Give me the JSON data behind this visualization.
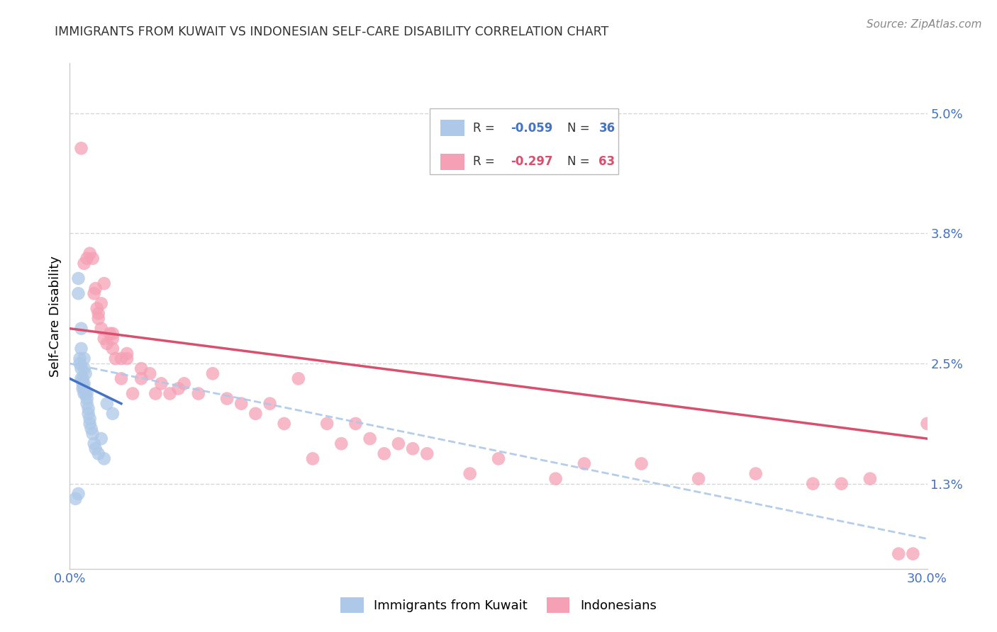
{
  "title": "IMMIGRANTS FROM KUWAIT VS INDONESIAN SELF-CARE DISABILITY CORRELATION CHART",
  "source": "Source: ZipAtlas.com",
  "ylabel": "Self-Care Disability",
  "right_yticks": [
    "5.0%",
    "3.8%",
    "2.5%",
    "1.3%"
  ],
  "right_ytick_vals": [
    5.0,
    3.8,
    2.5,
    1.3
  ],
  "xlim": [
    0.0,
    30.0
  ],
  "ylim": [
    0.45,
    5.5
  ],
  "legend_r1": "-0.059",
  "legend_n1": "36",
  "legend_r2": "-0.297",
  "legend_n2": "63",
  "blue_color": "#adc8e8",
  "pink_color": "#f5a0b5",
  "trendline_blue": "#4472c4",
  "trendline_pink": "#d94f6e",
  "trendline_dashed_color": "#adc8e8",
  "grid_color": "#cccccc",
  "axis_label_color": "#4472c4",
  "title_color": "#333333",
  "kuwait_points_x": [
    0.2,
    0.3,
    0.3,
    0.3,
    0.35,
    0.35,
    0.4,
    0.4,
    0.4,
    0.4,
    0.45,
    0.45,
    0.45,
    0.5,
    0.5,
    0.5,
    0.5,
    0.5,
    0.55,
    0.55,
    0.6,
    0.6,
    0.6,
    0.65,
    0.65,
    0.7,
    0.7,
    0.75,
    0.8,
    0.85,
    0.9,
    1.0,
    1.1,
    1.2,
    1.3,
    1.5
  ],
  "kuwait_points_y": [
    1.15,
    3.35,
    3.2,
    1.2,
    2.55,
    2.5,
    2.85,
    2.65,
    2.45,
    2.35,
    2.35,
    2.3,
    2.25,
    2.55,
    2.45,
    2.3,
    2.25,
    2.2,
    2.4,
    2.2,
    2.2,
    2.15,
    2.1,
    2.05,
    2.0,
    1.95,
    1.9,
    1.85,
    1.8,
    1.7,
    1.65,
    1.6,
    1.75,
    1.55,
    2.1,
    2.0
  ],
  "indonesian_points_x": [
    0.4,
    0.5,
    0.6,
    0.7,
    0.8,
    0.85,
    0.9,
    0.95,
    1.0,
    1.0,
    1.1,
    1.1,
    1.2,
    1.2,
    1.3,
    1.4,
    1.5,
    1.5,
    1.5,
    1.6,
    1.8,
    1.8,
    2.0,
    2.0,
    2.2,
    2.5,
    2.5,
    2.8,
    3.0,
    3.2,
    3.5,
    3.8,
    4.0,
    4.5,
    5.0,
    5.5,
    6.0,
    6.5,
    7.0,
    7.5,
    8.0,
    8.5,
    9.0,
    9.5,
    10.0,
    10.5,
    11.0,
    11.5,
    12.0,
    12.5,
    14.0,
    15.0,
    17.0,
    18.0,
    20.0,
    22.0,
    24.0,
    26.0,
    27.0,
    28.0,
    29.0,
    29.5,
    30.0
  ],
  "indonesian_points_y": [
    4.65,
    3.5,
    3.55,
    3.6,
    3.55,
    3.2,
    3.25,
    3.05,
    3.0,
    2.95,
    3.1,
    2.85,
    3.3,
    2.75,
    2.7,
    2.8,
    2.8,
    2.75,
    2.65,
    2.55,
    2.55,
    2.35,
    2.55,
    2.6,
    2.2,
    2.45,
    2.35,
    2.4,
    2.2,
    2.3,
    2.2,
    2.25,
    2.3,
    2.2,
    2.4,
    2.15,
    2.1,
    2.0,
    2.1,
    1.9,
    2.35,
    1.55,
    1.9,
    1.7,
    1.9,
    1.75,
    1.6,
    1.7,
    1.65,
    1.6,
    1.4,
    1.55,
    1.35,
    1.5,
    1.5,
    1.35,
    1.4,
    1.3,
    1.3,
    1.35,
    0.6,
    0.6,
    1.9
  ],
  "blue_trendline_x0": 0.0,
  "blue_trendline_x1": 1.8,
  "blue_trendline_y0": 2.35,
  "blue_trendline_y1": 2.1,
  "pink_trendline_x0": 0.0,
  "pink_trendline_x1": 30.0,
  "pink_trendline_y0": 2.85,
  "pink_trendline_y1": 1.75,
  "dashed_x0": 0.0,
  "dashed_x1": 30.0,
  "dashed_y0": 2.5,
  "dashed_y1": 0.75
}
